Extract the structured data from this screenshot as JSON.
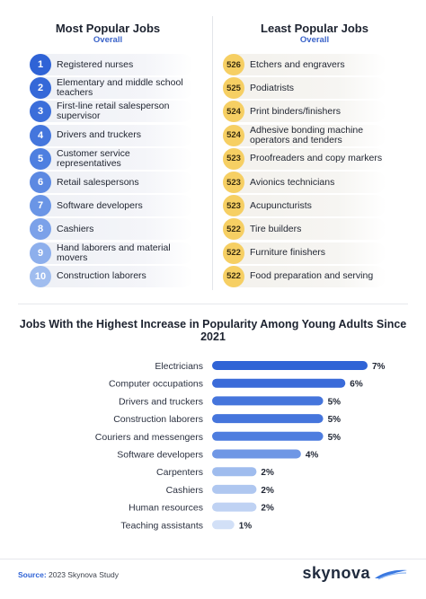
{
  "left_header": {
    "title": "Most Popular Jobs",
    "subtitle": "Overall"
  },
  "right_header": {
    "title": "Least Popular Jobs",
    "subtitle": "Overall"
  },
  "most_popular": [
    {
      "rank": "1",
      "label": "Registered nurses",
      "color": "#2f63d6"
    },
    {
      "rank": "2",
      "label": "Elementary and middle school teachers",
      "color": "#3568d8"
    },
    {
      "rank": "3",
      "label": "First-line retail salesperson supervisor",
      "color": "#3b6eda"
    },
    {
      "rank": "4",
      "label": "Drivers and truckers",
      "color": "#4476dd"
    },
    {
      "rank": "5",
      "label": "Customer service representatives",
      "color": "#4e7fe0"
    },
    {
      "rank": "6",
      "label": "Retail salespersons",
      "color": "#5c89e2"
    },
    {
      "rank": "7",
      "label": "Software developers",
      "color": "#6a95e6"
    },
    {
      "rank": "8",
      "label": "Cashiers",
      "color": "#7ba1e9"
    },
    {
      "rank": "9",
      "label": "Hand laborers and material movers",
      "color": "#8dafec"
    },
    {
      "rank": "10",
      "label": "Construction laborers",
      "color": "#a0bdef"
    }
  ],
  "least_popular": [
    {
      "score": "526",
      "label": "Etchers and engravers"
    },
    {
      "score": "525",
      "label": "Podiatrists"
    },
    {
      "score": "524",
      "label": "Print binders/finishers"
    },
    {
      "score": "524",
      "label": "Adhesive bonding machine operators and tenders"
    },
    {
      "score": "523",
      "label": "Proofreaders and copy markers"
    },
    {
      "score": "523",
      "label": "Avionics technicians"
    },
    {
      "score": "523",
      "label": "Acupuncturists"
    },
    {
      "score": "522",
      "label": "Tire builders"
    },
    {
      "score": "522",
      "label": "Furniture finishers"
    },
    {
      "score": "522",
      "label": "Food preparation and serving"
    }
  ],
  "chart_data": {
    "type": "bar",
    "orientation": "horizontal",
    "title": "Jobs With the Highest Increase in Popularity Among Young Adults Since 2021",
    "categories": [
      "Electricians",
      "Computer occupations",
      "Drivers and truckers",
      "Construction laborers",
      "Couriers and messengers",
      "Software developers",
      "Carpenters",
      "Cashiers",
      "Human resources",
      "Teaching assistants"
    ],
    "values": [
      7,
      6,
      5,
      5,
      5,
      4,
      2,
      2,
      2,
      1
    ],
    "value_labels": [
      "7%",
      "6%",
      "5%",
      "5%",
      "5%",
      "4%",
      "2%",
      "2%",
      "2%",
      "1%"
    ],
    "colors": [
      "#2f63d6",
      "#3a6bd9",
      "#4575dc",
      "#4575dc",
      "#4e7ddf",
      "#6f97e5",
      "#9fbcee",
      "#afc7f0",
      "#bfd2f3",
      "#d2e0f7"
    ],
    "xlabel": "",
    "ylabel": "",
    "xlim": [
      0,
      7
    ],
    "grid": false,
    "legend": "none"
  },
  "footer": {
    "source_label": "Source:",
    "source_text": "2023 Skynova Study",
    "logo_text": "skynova"
  }
}
